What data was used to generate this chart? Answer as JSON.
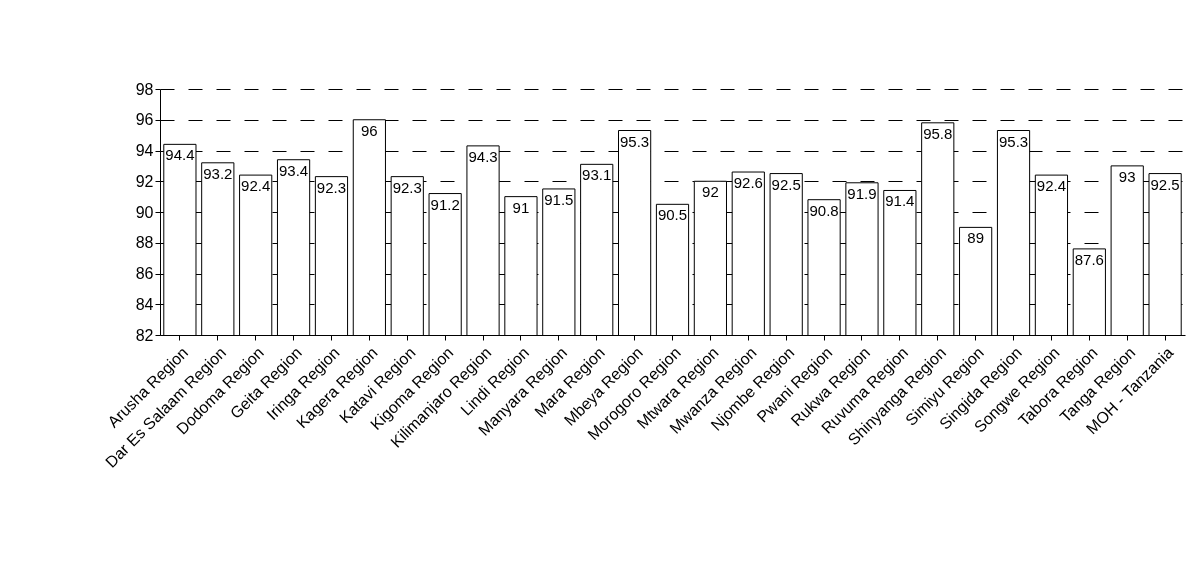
{
  "chart_data": {
    "type": "bar",
    "categories": [
      "Arusha Region",
      "Dar Es Salaam Region",
      "Dodoma Region",
      "Geita Region",
      "Iringa Region",
      "Kagera Region",
      "Katavi Region",
      "Kigoma Region",
      "Kilimanjaro Region",
      "Lindi Region",
      "Manyara Region",
      "Mara Region",
      "Mbeya Region",
      "Morogoro Region",
      "Mtwara Region",
      "Mwanza Region",
      "Njombe Region",
      "Pwani Region",
      "Rukwa Region",
      "Ruvuma Region",
      "Shinyanga Region",
      "Simiyu Region",
      "Singida Region",
      "Songwe Region",
      "Tabora Region",
      "Tanga Region",
      "MOH - Tanzania"
    ],
    "values": [
      94.4,
      93.2,
      92.4,
      93.4,
      92.3,
      96,
      92.3,
      91.2,
      94.3,
      91,
      91.5,
      93.1,
      95.3,
      90.5,
      92,
      92.6,
      92.5,
      90.8,
      91.9,
      91.4,
      95.8,
      89,
      95.3,
      92.4,
      87.6,
      93,
      92.5
    ],
    "color": "#ffffff",
    "ylim": [
      82,
      98
    ],
    "yticks": [
      82,
      84,
      86,
      88,
      90,
      92,
      94,
      96,
      98
    ],
    "grid": "y",
    "data_labels": true
  }
}
